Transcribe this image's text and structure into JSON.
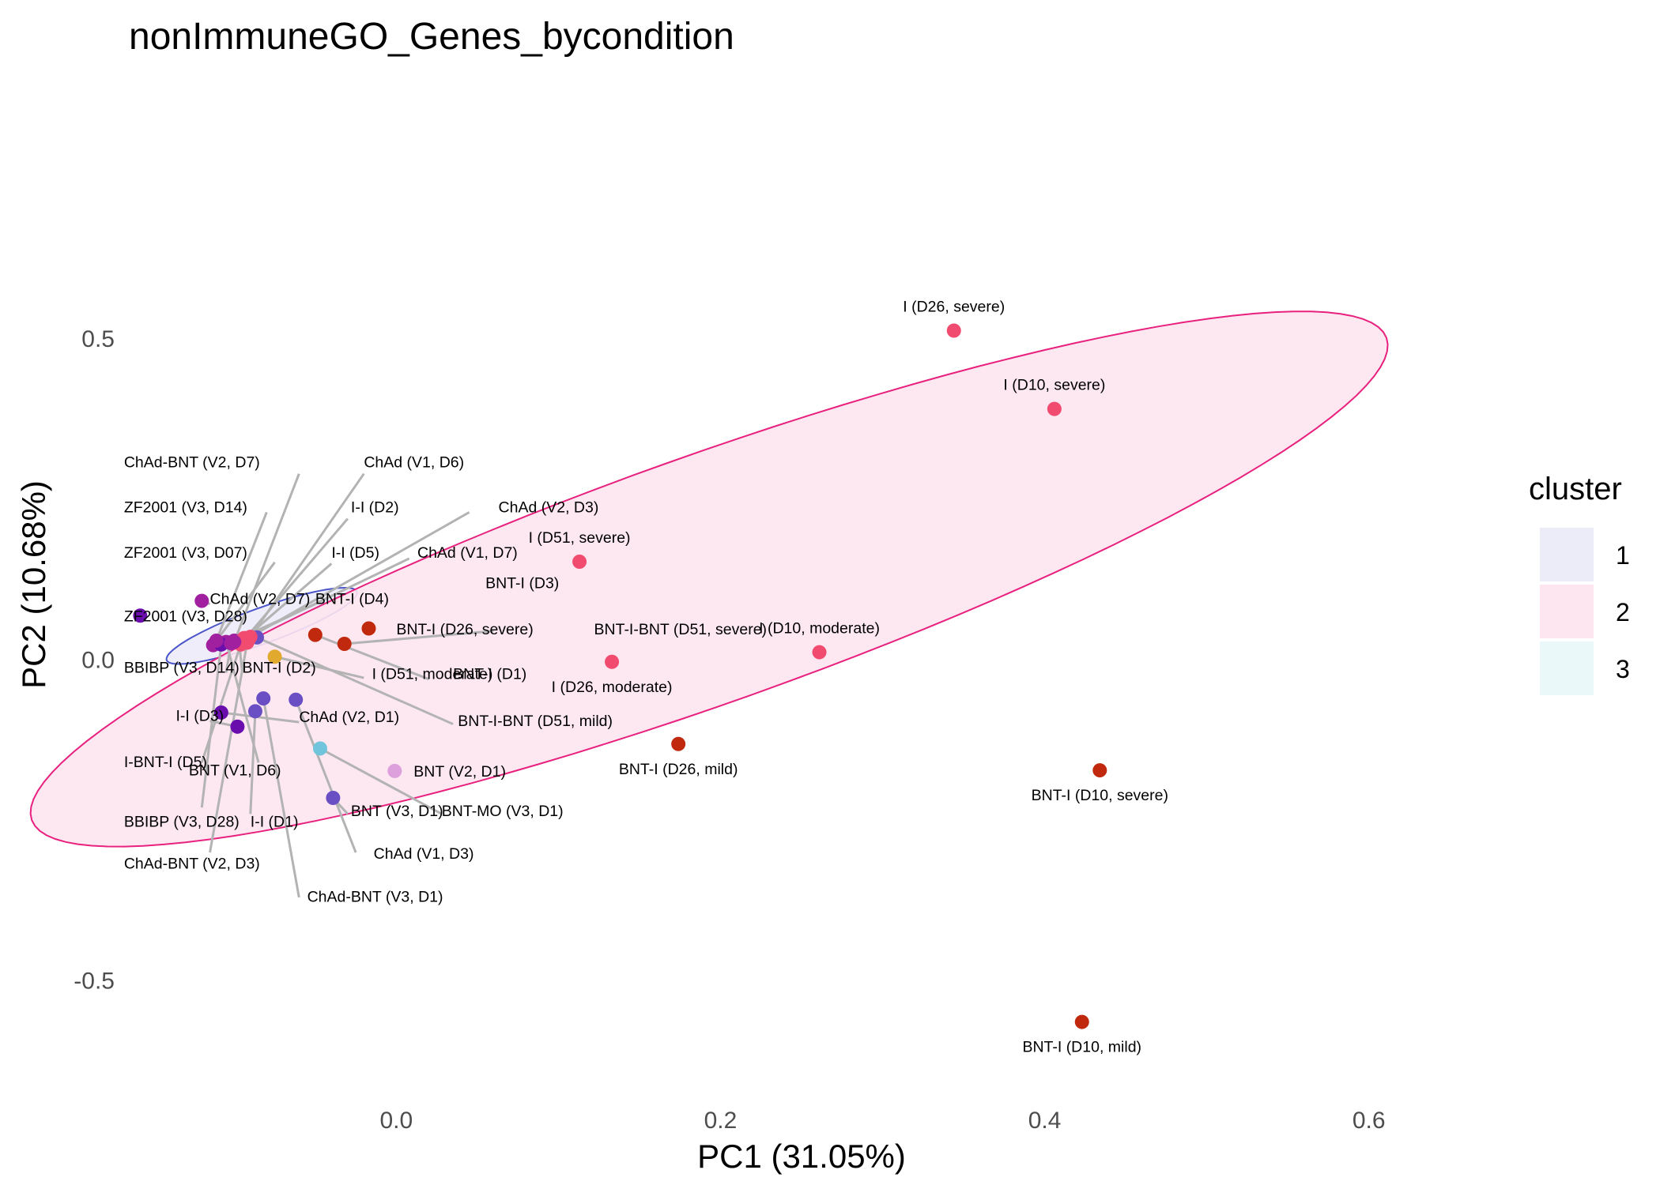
{
  "chart_data": {
    "type": "scatter",
    "title": "nonImmuneGO_Genes_bycondition",
    "xlabel": "PC1 (31.05%)",
    "ylabel": "PC2 (10.68%)",
    "xlim": [
      -0.165,
      0.665
    ],
    "ylim": [
      -0.695,
      0.905
    ],
    "x_ticks": [
      0.0,
      0.2,
      0.4,
      0.6
    ],
    "x_tick_labels": [
      "0.0",
      "0.2",
      "0.4",
      "0.6"
    ],
    "y_ticks": [
      -0.5,
      0.0,
      0.5
    ],
    "y_tick_labels": [
      "-0.5",
      "0.0",
      "0.5"
    ],
    "grid": false,
    "legend": {
      "title": "cluster",
      "position": "right",
      "entries": [
        {
          "label": "1",
          "fill": "#ECEBF8"
        },
        {
          "label": "2",
          "fill": "#FDE6F0"
        },
        {
          "label": "3",
          "fill": "#EBF8F9"
        }
      ]
    },
    "ellipses": [
      {
        "cluster": "1",
        "stroke": "#4A55C9",
        "fill": "#ECEBF8",
        "center": [
          -0.083,
          0.053
        ],
        "rx": 0.07,
        "ry": 0.055,
        "angle_deg": -37
      },
      {
        "cluster": "2",
        "stroke": "#E8207E",
        "fill": "#FDE6F0",
        "center": [
          0.193,
          0.126
        ],
        "rx": 0.5,
        "ry": 0.38,
        "angle_deg": -37
      }
    ],
    "points": [
      {
        "label": "I (D26, severe)",
        "x": 0.344,
        "y": 0.513,
        "color": "#F24B70",
        "label_pos": "above"
      },
      {
        "label": "I (D10, severe)",
        "x": 0.406,
        "y": 0.391,
        "color": "#F24B70",
        "label_pos": "above"
      },
      {
        "label": "I (D51, severe)",
        "x": 0.113,
        "y": 0.153,
        "color": "#F24B70",
        "label_pos": "above"
      },
      {
        "label": "I (D10, moderate)",
        "x": 0.261,
        "y": 0.012,
        "color": "#F24B70",
        "label_pos": "above"
      },
      {
        "label": "I (D26, moderate)",
        "x": 0.133,
        "y": -0.003,
        "color": "#F24B70",
        "label_pos": "below"
      },
      {
        "label": "BNT-I (D26, mild)",
        "x": 0.174,
        "y": -0.131,
        "color": "#C0290E",
        "label_pos": "below"
      },
      {
        "label": "BNT-I (D10, severe)",
        "x": 0.434,
        "y": -0.172,
        "color": "#C0290E",
        "label_pos": "below"
      },
      {
        "label": "BNT-I (D10, mild)",
        "x": 0.423,
        "y": -0.564,
        "color": "#C0290E",
        "label_pos": "below"
      },
      {
        "label": "BNT (V2, D1)",
        "x": -0.001,
        "y": -0.173,
        "color": "#DDA0DD",
        "label_pos": "right"
      },
      {
        "label": "BNT-MO (V3, D1)",
        "x": -0.047,
        "y": -0.138,
        "color": "#70C4DC",
        "label_pos": "line"
      },
      {
        "label": "BNT (V3, D1)",
        "x": -0.039,
        "y": -0.215,
        "color": "#6A4FC4",
        "label_pos": "line"
      },
      {
        "label": "ChAd (V1, D3)",
        "x": -0.062,
        "y": -0.062,
        "color": "#6A4FC4",
        "label_pos": "line"
      },
      {
        "label": "ChAd (V2, D1)",
        "x": -0.108,
        "y": -0.082,
        "color": "#6A0DAD",
        "label_pos": "line"
      },
      {
        "label": "BNT-I (D26, severe)",
        "x": -0.017,
        "y": 0.049,
        "color": "#C0290E",
        "label_pos": "line"
      },
      {
        "label": "BNT-I-BNT (D51, severe)",
        "x": -0.032,
        "y": 0.025,
        "color": "#C0290E",
        "label_pos": "line"
      },
      {
        "label": "BNT-I (D1)",
        "x": -0.05,
        "y": 0.039,
        "color": "#C0290E",
        "label_pos": "line"
      },
      {
        "label": "BNT-I-BNT (D51, mild)",
        "x": -0.086,
        "y": 0.035,
        "color": "#6A4FC4",
        "label_pos": "line"
      },
      {
        "label": "I (D51, moderate)",
        "x": -0.075,
        "y": 0.005,
        "color": "#E2A92F",
        "label_pos": "line"
      },
      {
        "label": "ChAd (V1, D7)",
        "x": -0.094,
        "y": 0.034,
        "color": "#F24B70",
        "label_pos": "line"
      },
      {
        "label": "ChAd (V2, D7)",
        "x": -0.12,
        "y": 0.092,
        "color": "#A020A0",
        "label_pos": "line"
      },
      {
        "label": "BNT-I (D4)",
        "x": -0.1,
        "y": 0.03,
        "color": "#A020A0",
        "label_pos": "line"
      },
      {
        "label": "ZF2001 (V3, D28)",
        "x": -0.158,
        "y": 0.069,
        "color": "#6A0DAD",
        "label_pos": "line"
      },
      {
        "label": "ZF2001 (V3, D07)",
        "x": -0.113,
        "y": 0.023,
        "color": "#A020A0",
        "label_pos": "line"
      },
      {
        "label": "I-BNT-I (D5)",
        "x": -0.096,
        "y": 0.024,
        "color": "#F24B70",
        "label_pos": "line"
      },
      {
        "label": "I-I (D3)",
        "x": -0.098,
        "y": -0.104,
        "color": "#6A0DAD",
        "label_pos": "line"
      },
      {
        "label": "I-I (D1)",
        "x": -0.087,
        "y": -0.08,
        "color": "#6A4FC4",
        "label_pos": "line"
      },
      {
        "label": "BNT (V1, D6)",
        "x": -0.105,
        "y": 0.028,
        "color": "#A020A0",
        "label_pos": "line"
      },
      {
        "label": "BBIBP (V3, D28)",
        "x": -0.108,
        "y": 0.024,
        "color": "#6A0DAD",
        "label_pos": "line"
      },
      {
        "label": "ChAd-BNT (V2, D3)",
        "x": -0.092,
        "y": 0.027,
        "color": "#F24B70",
        "label_pos": "line"
      },
      {
        "label": "ChAd-BNT (V3, D1)",
        "x": -0.082,
        "y": -0.06,
        "color": "#6A4FC4",
        "label_pos": "line"
      },
      {
        "label": "BBIBP (V3, D14)",
        "x": -0.102,
        "y": 0.026,
        "color": "#A020A0",
        "label_pos": "line"
      },
      {
        "label": "BNT-I (D2)",
        "x": -0.097,
        "y": 0.028,
        "color": "#F24B70",
        "label_pos": "line"
      },
      {
        "label": "ZF2001 (V3, D14)",
        "x": -0.111,
        "y": 0.03,
        "color": "#A020A0",
        "label_pos": "line"
      },
      {
        "label": "I-I (D5)",
        "x": -0.095,
        "y": 0.03,
        "color": "#F24B70",
        "label_pos": "line"
      },
      {
        "label": "I-I (D2)",
        "x": -0.093,
        "y": 0.034,
        "color": "#F24B70",
        "label_pos": "line"
      },
      {
        "label": "ChAd (V2, D3)",
        "x": -0.09,
        "y": 0.036,
        "color": "#F24B70",
        "label_pos": "line"
      },
      {
        "label": "ChAd (V1, D6)",
        "x": -0.091,
        "y": 0.032,
        "color": "#F24B70",
        "label_pos": "line"
      },
      {
        "label": "ChAd-BNT (V2, D7)",
        "x": -0.1,
        "y": 0.028,
        "color": "#A020A0",
        "label_pos": "line"
      }
    ],
    "repel_labels": [
      {
        "point": "ChAd-BNT (V2, D7)",
        "lx": -0.168,
        "ly": 0.3,
        "line_to": [
          -0.06,
          0.29
        ]
      },
      {
        "point": "ChAd (V1, D6)",
        "lx": -0.02,
        "ly": 0.3,
        "line_to": [
          -0.02,
          0.29
        ]
      },
      {
        "point": "I-I (D2)",
        "lx": -0.028,
        "ly": 0.23,
        "line_to": [
          -0.03,
          0.22
        ]
      },
      {
        "point": "ChAd (V2, D3)",
        "lx": 0.063,
        "ly": 0.23,
        "line_to": [
          0.045,
          0.23
        ]
      },
      {
        "point": "ZF2001 (V3, D14)",
        "lx": -0.168,
        "ly": 0.23,
        "line_to": [
          -0.08,
          0.23
        ]
      },
      {
        "point": "I-I (D5)",
        "lx": -0.04,
        "ly": 0.159,
        "line_to": [
          -0.04,
          0.15
        ]
      },
      {
        "point": "ChAd (V1, D7)",
        "lx": 0.013,
        "ly": 0.159,
        "line_to": [
          0.008,
          0.158
        ]
      },
      {
        "point": "ZF2001 (V3, D07)",
        "lx": -0.168,
        "ly": 0.159,
        "line_to": [
          -0.075,
          0.152
        ]
      },
      {
        "point": "BNT-I (D3)",
        "lx": 0.055,
        "ly": 0.112,
        "line_to": [
          0.05,
          0.11
        ]
      },
      {
        "point": "ChAd (V2, D7)",
        "lx": -0.115,
        "ly": 0.087,
        "line_to": [
          -0.115,
          0.087
        ]
      },
      {
        "point": "BNT-I (D4)",
        "lx": -0.05,
        "ly": 0.087,
        "line_to": [
          -0.05,
          0.087
        ]
      },
      {
        "point": "ZF2001 (V3, D28)",
        "lx": -0.168,
        "ly": 0.06,
        "line_to": [
          -0.158,
          0.069
        ]
      },
      {
        "point": "BNT-I (D26, severe)",
        "lx": 0.0,
        "ly": 0.04,
        "line_to": [
          -0.017,
          0.049
        ]
      },
      {
        "point": "BNT-I-BNT (D51, severe)",
        "lx": 0.122,
        "ly": 0.04,
        "line_to": [
          0.06,
          0.045
        ]
      },
      {
        "point": "BBIBP (V3, D14)",
        "lx": -0.168,
        "ly": -0.02,
        "line_to": [
          -0.105,
          -0.02
        ]
      },
      {
        "point": "BNT-I (D2)",
        "lx": -0.095,
        "ly": -0.02,
        "line_to": [
          -0.095,
          -0.02
        ]
      },
      {
        "point": "I (D51, moderate)",
        "lx": -0.015,
        "ly": -0.03,
        "line_to": [
          -0.02,
          -0.028
        ]
      },
      {
        "point": "BNT-I (D1)",
        "lx": 0.035,
        "ly": -0.03,
        "line_to": [
          0.02,
          -0.03
        ]
      },
      {
        "point": "I-I (D3)",
        "lx": -0.136,
        "ly": -0.095,
        "line_to": [
          -0.115,
          -0.095
        ]
      },
      {
        "point": "ChAd (V2, D1)",
        "lx": -0.06,
        "ly": -0.097,
        "line_to": [
          -0.06,
          -0.097
        ]
      },
      {
        "point": "BNT-I-BNT (D51, mild)",
        "lx": 0.038,
        "ly": -0.103,
        "line_to": [
          0.035,
          -0.1
        ]
      },
      {
        "point": "I-BNT-I (D5)",
        "lx": -0.168,
        "ly": -0.167,
        "line_to": [
          -0.12,
          -0.16
        ]
      },
      {
        "point": "BNT (V1, D6)",
        "lx": -0.128,
        "ly": -0.18,
        "line_to": [
          -0.085,
          -0.16
        ]
      },
      {
        "point": "BNT-MO (V3, D1)",
        "lx": 0.028,
        "ly": -0.243,
        "line_to": [
          0.028,
          -0.24
        ]
      },
      {
        "point": "BNT (V3, D1)",
        "lx": -0.028,
        "ly": -0.243,
        "line_to": [
          -0.03,
          -0.24
        ]
      },
      {
        "point": "I-I (D1)",
        "lx": -0.09,
        "ly": -0.26,
        "line_to": [
          -0.09,
          -0.24
        ]
      },
      {
        "point": "BBIBP (V3, D28)",
        "lx": -0.168,
        "ly": -0.26,
        "line_to": [
          -0.12,
          -0.23
        ]
      },
      {
        "point": "ChAd (V1, D3)",
        "lx": -0.014,
        "ly": -0.31,
        "line_to": [
          -0.025,
          -0.3
        ]
      },
      {
        "point": "ChAd-BNT (V2, D3)",
        "lx": -0.168,
        "ly": -0.325,
        "line_to": [
          -0.115,
          -0.3
        ]
      },
      {
        "point": "ChAd-BNT (V3, D1)",
        "lx": -0.055,
        "ly": -0.377,
        "line_to": [
          -0.06,
          -0.37
        ]
      }
    ]
  }
}
